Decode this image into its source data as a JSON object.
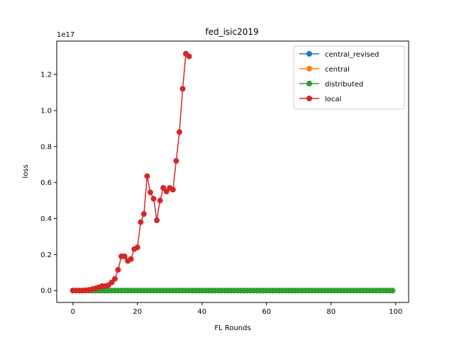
{
  "chart_data": {
    "type": "line",
    "title": "fed_isic2019",
    "xlabel": "FL Rounds",
    "ylabel": "loss",
    "y_offset_label": "1e17",
    "xlim": [
      -5,
      104
    ],
    "ylim": [
      -0.066,
      1.385
    ],
    "xticks": [
      0,
      20,
      40,
      60,
      80,
      100
    ],
    "yticks": [
      0.0,
      0.2,
      0.4,
      0.6,
      0.8,
      1.0,
      1.2
    ],
    "ytick_labels": [
      "0.0",
      "0.2",
      "0.4",
      "0.6",
      "0.8",
      "1.0",
      "1.2"
    ],
    "grid": false,
    "legend_position": "top-right",
    "series": [
      {
        "name": "central_revised",
        "color": "#1f77b4",
        "x_start": 0,
        "x_end": 99,
        "constant_value": 0.0
      },
      {
        "name": "central",
        "color": "#ff7f0e",
        "x_start": 0,
        "x_end": 99,
        "constant_value": 0.0
      },
      {
        "name": "distributed",
        "color": "#2ca02c",
        "x_start": 0,
        "x_end": 99,
        "constant_value": 0.0
      },
      {
        "name": "local",
        "color": "#d62728",
        "x": [
          0,
          1,
          2,
          3,
          4,
          5,
          6,
          7,
          8,
          9,
          10,
          11,
          12,
          13,
          14,
          15,
          16,
          17,
          18,
          19,
          20,
          21,
          22,
          23,
          24,
          25,
          26,
          27,
          28,
          29,
          30,
          31,
          32,
          33,
          34,
          35,
          36
        ],
        "values": [
          0.0,
          0.0,
          0.0,
          0.0,
          0.002,
          0.004,
          0.008,
          0.012,
          0.018,
          0.025,
          0.025,
          0.03,
          0.045,
          0.065,
          0.115,
          0.19,
          0.19,
          0.165,
          0.175,
          0.23,
          0.24,
          0.38,
          0.425,
          0.635,
          0.545,
          0.51,
          0.39,
          0.5,
          0.57,
          0.55,
          0.57,
          0.56,
          0.72,
          0.88,
          1.12,
          1.315,
          1.3
        ]
      }
    ]
  }
}
